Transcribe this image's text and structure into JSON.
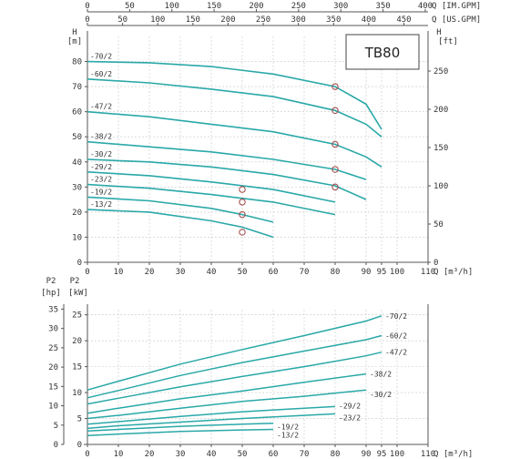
{
  "model_label": "TB80",
  "chart_data": [
    {
      "type": "line",
      "title": "TB80",
      "x_label": "Q [m³/h]",
      "y_label": "H [m]",
      "y2_label": "H [ft]",
      "top_axis_1_label": "Q [IM.GPM]",
      "top_axis_2_label": "Q [US.GPM]",
      "xlim": [
        0,
        110
      ],
      "ylim": [
        0,
        90
      ],
      "x_ticks": [
        0,
        10,
        20,
        30,
        40,
        50,
        60,
        70,
        80,
        90,
        95,
        100,
        110
      ],
      "y_ticks": [
        0,
        10,
        20,
        30,
        40,
        50,
        60,
        70,
        80
      ],
      "y2_ticks": [
        0,
        50,
        100,
        150,
        200,
        250
      ],
      "top_axis_1_ticks": [
        0,
        50,
        100,
        150,
        200,
        250,
        300,
        350,
        400
      ],
      "top_axis_2_ticks": [
        0,
        50,
        100,
        150,
        200,
        250,
        300,
        350,
        400,
        450
      ],
      "grid": true,
      "series": [
        {
          "name": "-70/2",
          "x": [
            0,
            20,
            40,
            60,
            80,
            90,
            95
          ],
          "y": [
            80,
            79.5,
            78,
            75,
            70,
            63,
            53
          ]
        },
        {
          "name": "-60/2",
          "x": [
            0,
            20,
            40,
            60,
            80,
            90,
            95
          ],
          "y": [
            73,
            71.5,
            69,
            66,
            60.5,
            55,
            50
          ]
        },
        {
          "name": "-47/2",
          "x": [
            0,
            20,
            40,
            60,
            80,
            90,
            95
          ],
          "y": [
            60,
            58,
            55,
            52,
            47,
            42,
            38
          ]
        },
        {
          "name": "-38/2",
          "x": [
            0,
            20,
            40,
            60,
            80,
            90
          ],
          "y": [
            48,
            46,
            44,
            41,
            37,
            33
          ]
        },
        {
          "name": "-30/2",
          "x": [
            0,
            20,
            40,
            60,
            80,
            90
          ],
          "y": [
            41,
            40,
            38,
            35,
            30.5,
            25
          ]
        },
        {
          "name": "-29/2",
          "x": [
            0,
            20,
            40,
            60,
            80
          ],
          "y": [
            36,
            34.5,
            32,
            29,
            24
          ]
        },
        {
          "name": "-23/2",
          "x": [
            0,
            20,
            40,
            60,
            80
          ],
          "y": [
            31,
            29.5,
            27,
            24,
            19
          ]
        },
        {
          "name": "-19/2",
          "x": [
            0,
            20,
            40,
            50,
            60
          ],
          "y": [
            26,
            24.5,
            21.5,
            19,
            16
          ]
        },
        {
          "name": "-13/2",
          "x": [
            0,
            20,
            40,
            50,
            60
          ],
          "y": [
            21,
            20,
            16.5,
            14,
            10
          ]
        }
      ],
      "markers": [
        [
          80,
          70
        ],
        [
          80,
          60.5
        ],
        [
          80,
          47
        ],
        [
          80,
          37
        ],
        [
          80,
          30
        ],
        [
          50,
          29
        ],
        [
          50,
          24
        ],
        [
          50,
          19
        ],
        [
          50,
          12
        ]
      ]
    },
    {
      "type": "line",
      "x_label": "Q [m³/h]",
      "y_label": "P2 [kW]",
      "y2_label": "P2 [hp]",
      "xlim": [
        0,
        110
      ],
      "ylim": [
        0,
        26
      ],
      "x_ticks": [
        0,
        10,
        20,
        30,
        40,
        50,
        60,
        70,
        80,
        90,
        95,
        100,
        110
      ],
      "y_ticks": [
        0,
        5,
        10,
        15,
        20,
        25
      ],
      "y2_ticks": [
        0,
        5,
        10,
        15,
        20,
        25,
        30,
        35
      ],
      "grid": true,
      "series": [
        {
          "name": "-70/2",
          "x": [
            0,
            10,
            30,
            50,
            70,
            90,
            95
          ],
          "y": [
            10.5,
            12.2,
            15.5,
            18.3,
            21,
            23.8,
            24.8
          ]
        },
        {
          "name": "-60/2",
          "x": [
            0,
            10,
            30,
            50,
            70,
            90,
            95
          ],
          "y": [
            9,
            10.4,
            13.3,
            15.8,
            18,
            20.2,
            21
          ]
        },
        {
          "name": "-47/2",
          "x": [
            0,
            10,
            30,
            50,
            70,
            90,
            95
          ],
          "y": [
            7.8,
            8.9,
            11.1,
            13.1,
            15,
            17.1,
            17.8
          ]
        },
        {
          "name": "-38/2",
          "x": [
            0,
            10,
            30,
            50,
            70,
            90
          ],
          "y": [
            6,
            7,
            8.8,
            10.3,
            12,
            13.6
          ]
        },
        {
          "name": "-30/2",
          "x": [
            0,
            10,
            30,
            50,
            70,
            90
          ],
          "y": [
            5,
            5.6,
            7,
            8.3,
            9.3,
            10.5
          ]
        },
        {
          "name": "-29/2",
          "x": [
            0,
            10,
            30,
            50,
            70,
            80
          ],
          "y": [
            3.9,
            4.4,
            5.4,
            6.3,
            7,
            7.3
          ]
        },
        {
          "name": "-23/2",
          "x": [
            0,
            10,
            30,
            50,
            70,
            80
          ],
          "y": [
            3.1,
            3.6,
            4.3,
            5,
            5.6,
            5.9
          ]
        },
        {
          "name": "-19/2",
          "x": [
            0,
            10,
            30,
            50,
            60
          ],
          "y": [
            2.6,
            2.9,
            3.5,
            3.9,
            4.1
          ]
        },
        {
          "name": "-13/2",
          "x": [
            0,
            10,
            30,
            50,
            60
          ],
          "y": [
            1.7,
            2,
            2.5,
            2.8,
            2.9
          ]
        }
      ]
    }
  ]
}
